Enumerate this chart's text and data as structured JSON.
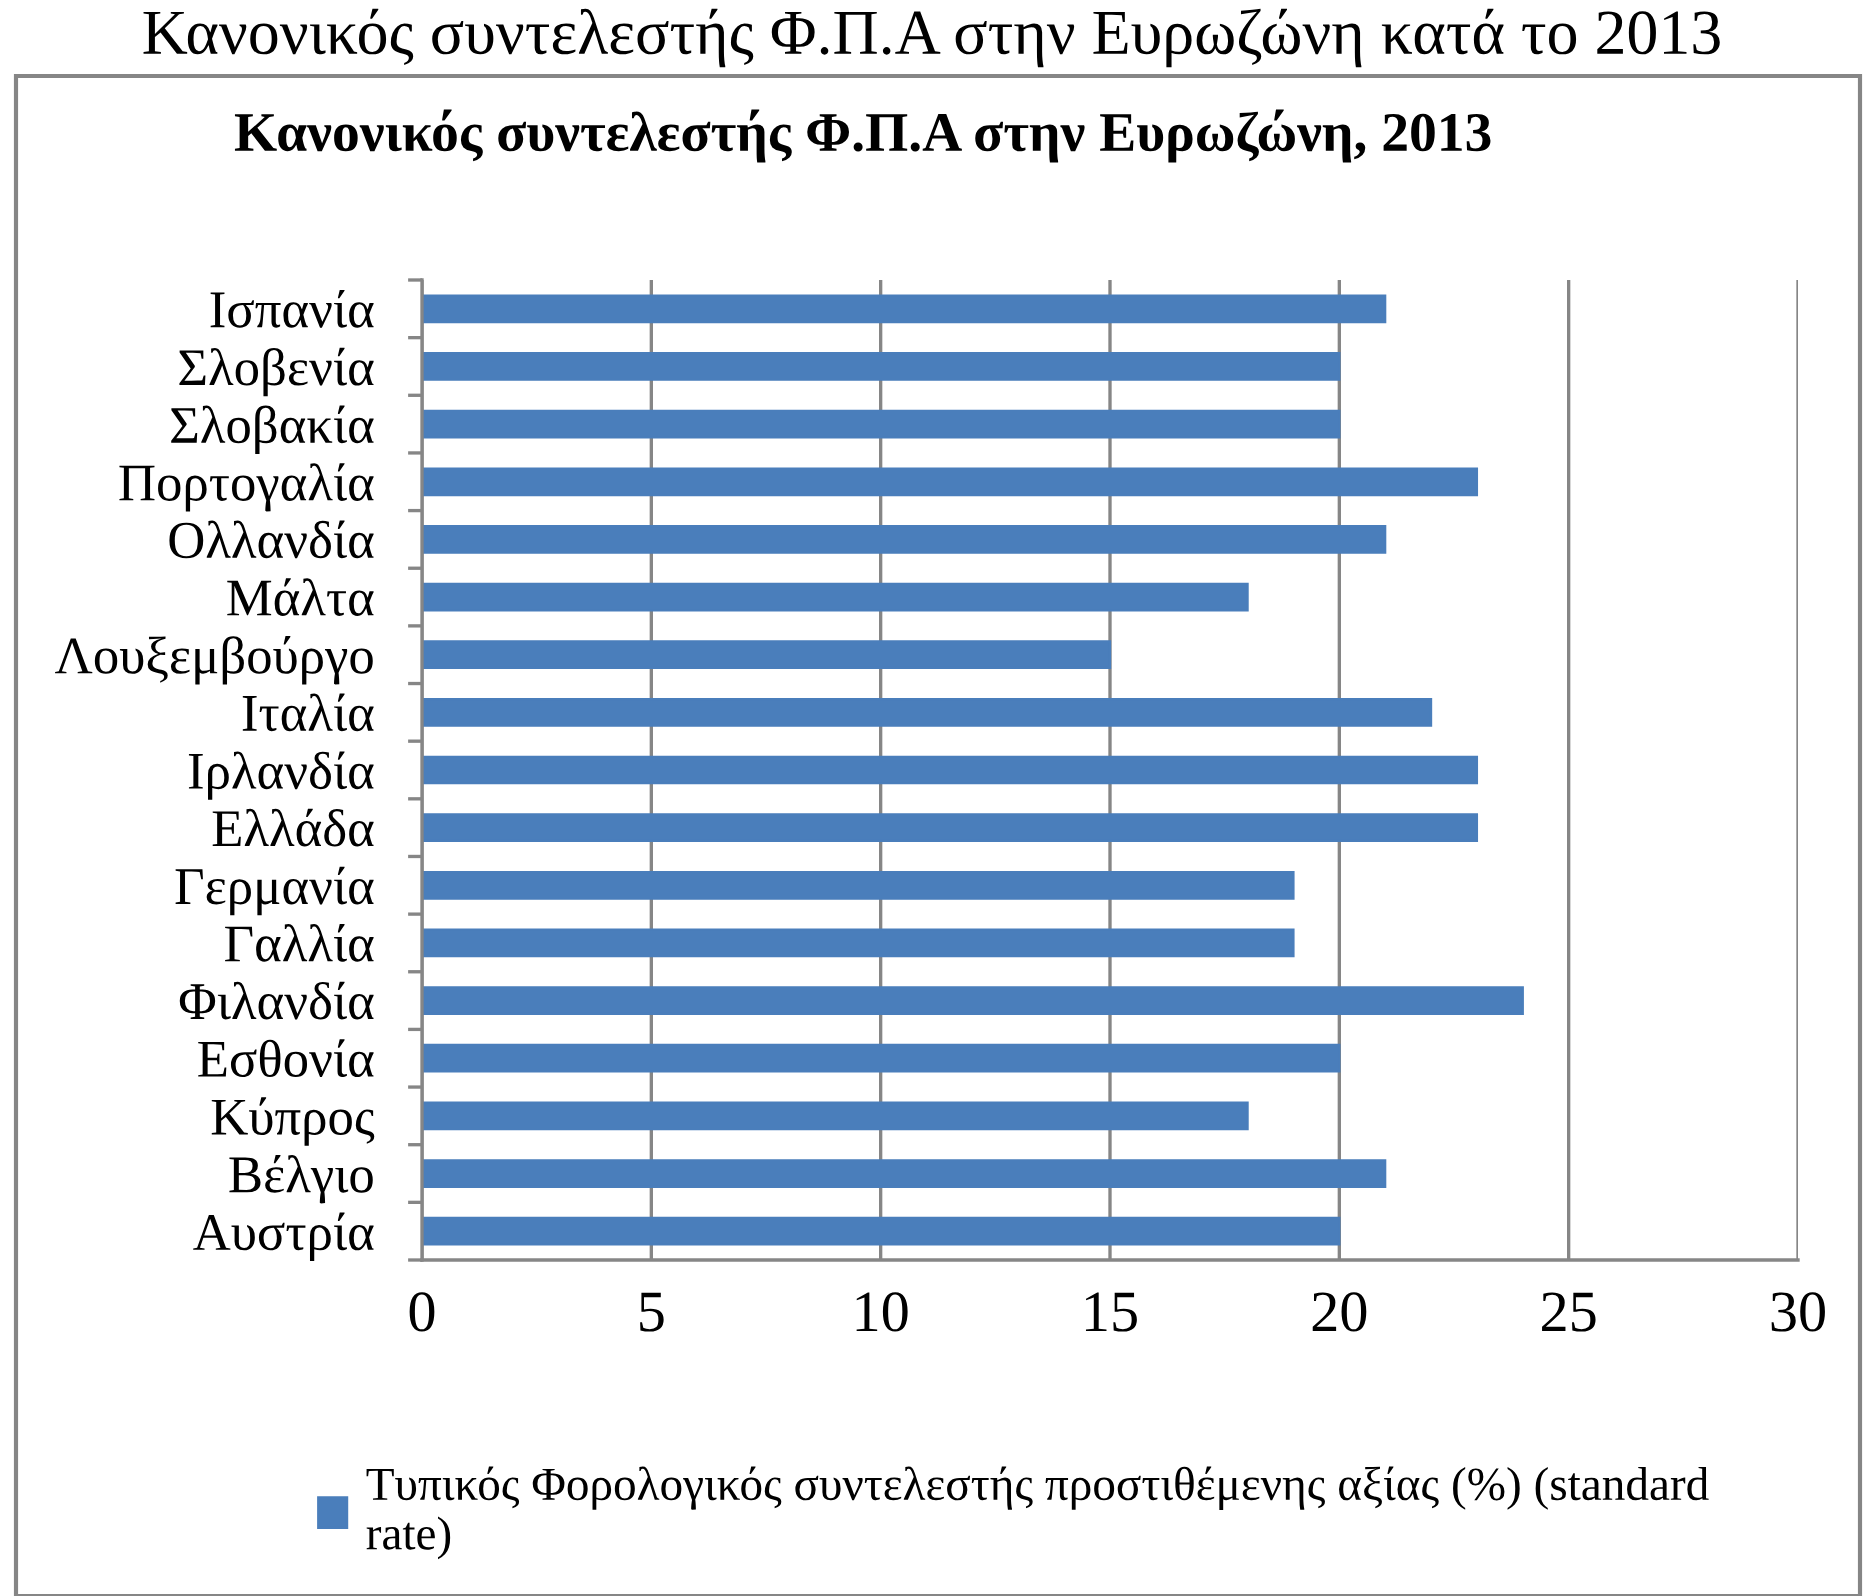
{
  "chart_data": {
    "type": "bar",
    "orientation": "horizontal",
    "title": "Κανονικός συντελεστής Φ.Π.Α στην Ευρωζώνη, 2013",
    "annotations": [
      "Κανονικός συντελεστής Φ.Π.Α στην Ευρωζώνη κατά το 2013"
    ],
    "categories": [
      "Ισπανία",
      "Σλοβενία",
      "Σλοβακία",
      "Πορτογαλία",
      "Ολλανδία",
      "Μάλτα",
      "Λουξεμβούργο",
      "Ιταλία",
      "Ιρλανδία",
      "Ελλάδα",
      "Γερμανία",
      "Γαλλία",
      "Φιλανδία",
      "Εσθονία",
      "Κύπρος",
      "Βέλγιο",
      "Αυστρία"
    ],
    "series": [
      {
        "name": "Τυπικός Φορολογικός συντελεστής προστιθέμενης αξίας (%) (standard rate)",
        "color": "#4a7ebb",
        "values": [
          21,
          20,
          20,
          23,
          21,
          18,
          15,
          22,
          23,
          23,
          19,
          19,
          24,
          20,
          18,
          21,
          20
        ]
      }
    ],
    "xlim": [
      0,
      30
    ],
    "xticks": [
      0,
      5,
      10,
      15,
      20,
      25,
      30
    ],
    "grid": "x",
    "legend": "bottom"
  }
}
